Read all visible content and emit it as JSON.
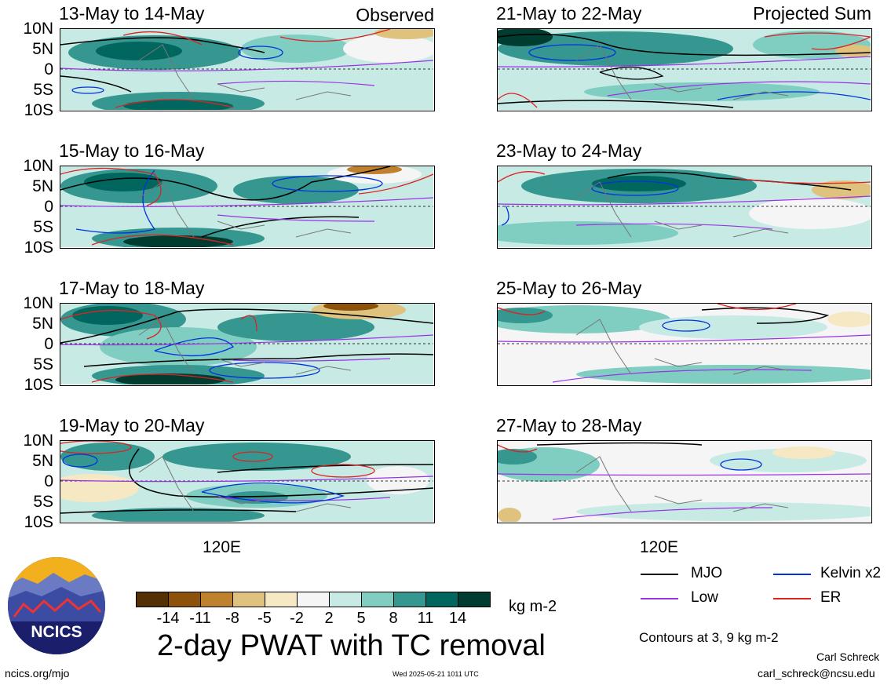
{
  "panels_left": [
    {
      "date": "13-May to 14-May",
      "corner": "Observed"
    },
    {
      "date": "15-May to 16-May",
      "corner": ""
    },
    {
      "date": "17-May to 18-May",
      "corner": ""
    },
    {
      "date": "19-May to 20-May",
      "corner": ""
    }
  ],
  "panels_right": [
    {
      "date": "21-May to 22-May",
      "corner": "Projected Sum"
    },
    {
      "date": "23-May to 24-May",
      "corner": ""
    },
    {
      "date": "25-May to 26-May",
      "corner": ""
    },
    {
      "date": "27-May to 28-May",
      "corner": ""
    }
  ],
  "lat_labels": [
    "10N",
    "5N",
    "0",
    "5S",
    "10S"
  ],
  "lon_label": "120E",
  "colorbar": {
    "ticks": [
      "-14",
      "-11",
      "-8",
      "-5",
      "-2",
      "2",
      "5",
      "8",
      "11",
      "14"
    ],
    "colors": [
      "#543005",
      "#8c510a",
      "#bf812d",
      "#dfc27d",
      "#f6e8c3",
      "#f5f5f5",
      "#c7eae5",
      "#80cdc1",
      "#35978f",
      "#01665e",
      "#003c30"
    ],
    "unit": "kg m-2"
  },
  "title": "2-day PWAT with TC removal",
  "legend": [
    {
      "name": "MJO",
      "color": "#000000"
    },
    {
      "name": "Kelvin x2",
      "color": "#0033dd"
    },
    {
      "name": "Low",
      "color": "#9a32e6"
    },
    {
      "name": "ER",
      "color": "#dd2222"
    }
  ],
  "contours_note": "Contours at 3, 9 kg m-2",
  "author": "Carl Schreck",
  "email": "carl_schreck@ncsu.edu",
  "website": "ncics.org/mjo",
  "timestamp": "Wed 2025-05-21 1011 UTC",
  "logo_text": "NCICS"
}
